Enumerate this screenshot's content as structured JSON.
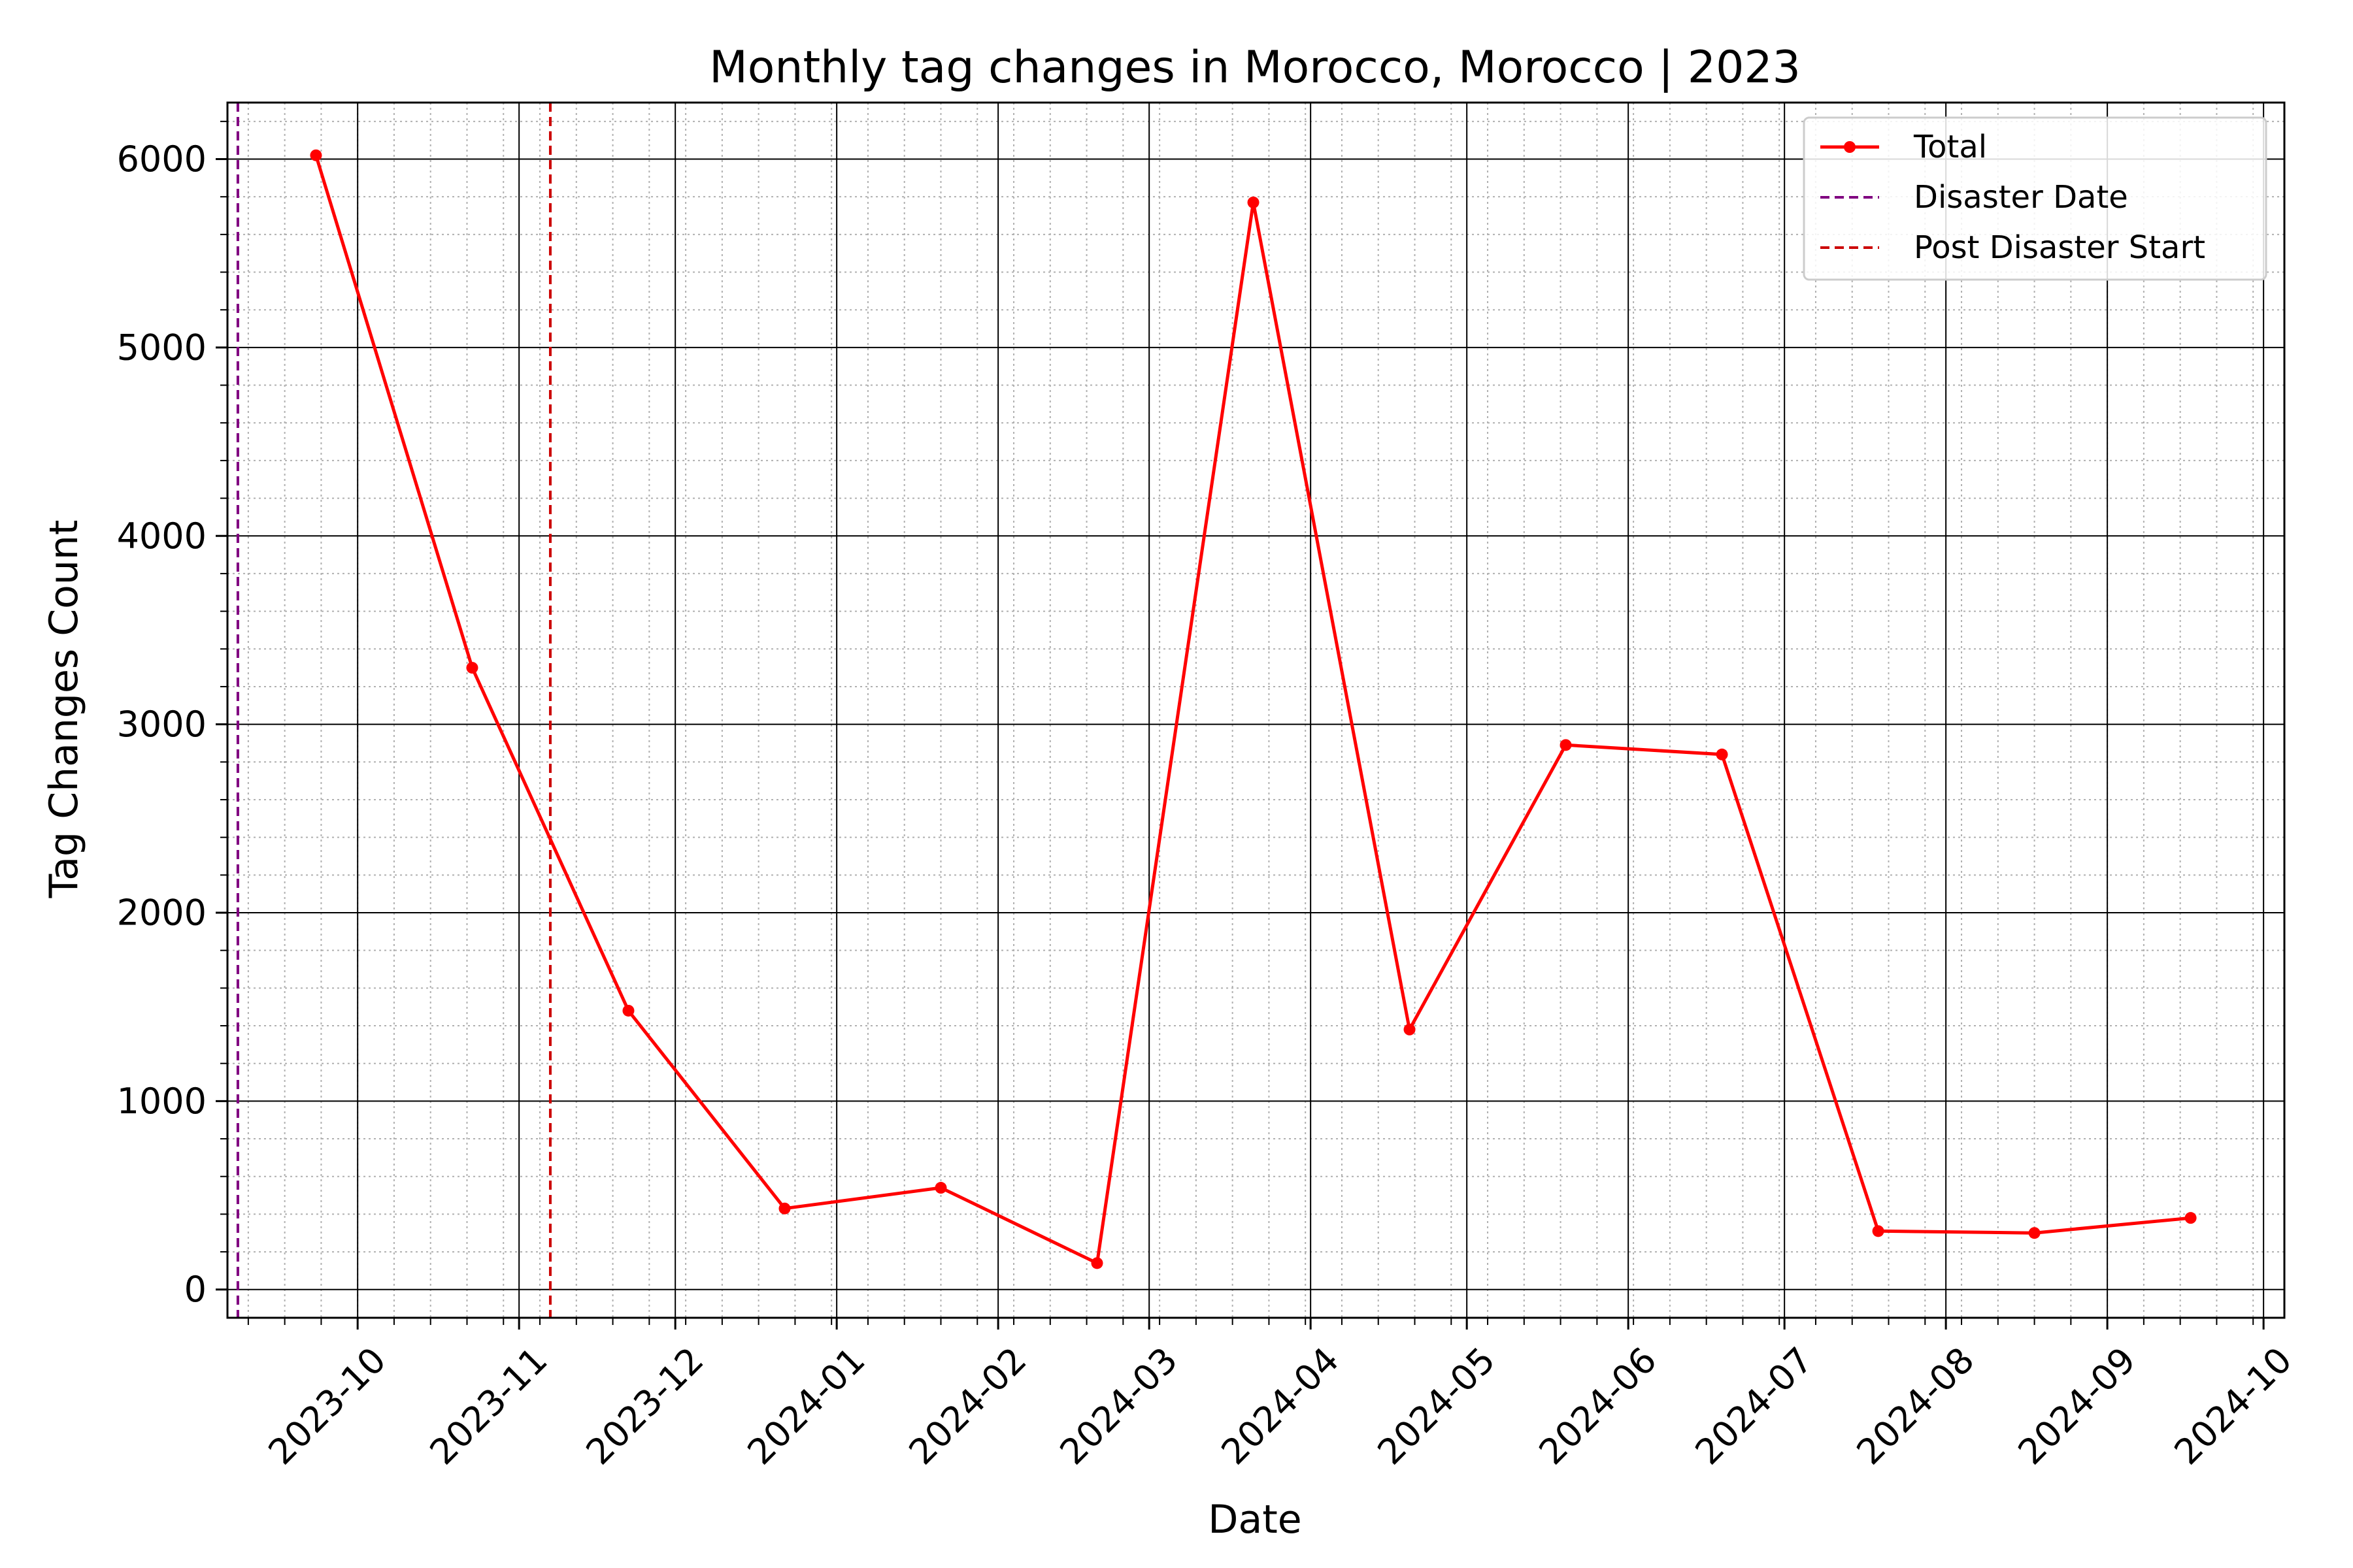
{
  "chart_data": {
    "type": "line",
    "title": "Monthly tag changes in Morocco, Morocco | 2023",
    "xlabel": "Date",
    "ylabel": "Tag Changes Count",
    "x_axis_type": "date",
    "xlim": [
      "2023-09-06",
      "2024-10-05"
    ],
    "ylim": [
      -150,
      6300
    ],
    "x_ticks": [
      "2023-10-01",
      "2023-11-01",
      "2023-12-01",
      "2024-01-01",
      "2024-02-01",
      "2024-03-01",
      "2024-04-01",
      "2024-05-01",
      "2024-06-01",
      "2024-07-01",
      "2024-08-01",
      "2024-09-01",
      "2024-10-01"
    ],
    "x_tick_labels": [
      "2023-10",
      "2023-11",
      "2023-12",
      "2024-01",
      "2024-02",
      "2024-03",
      "2024-04",
      "2024-05",
      "2024-06",
      "2024-07",
      "2024-08",
      "2024-09",
      "2024-10"
    ],
    "y_ticks": [
      0,
      1000,
      2000,
      3000,
      4000,
      5000,
      6000
    ],
    "y_tick_labels": [
      "0",
      "1000",
      "2000",
      "3000",
      "4000",
      "5000",
      "6000"
    ],
    "grid": {
      "major": true,
      "minor": true
    },
    "legend_position": "top-right",
    "series": [
      {
        "name": "Total",
        "color": "#ff0000",
        "marker": "circle",
        "x": [
          "2023-09-23",
          "2023-10-23",
          "2023-11-22",
          "2023-12-22",
          "2024-01-21",
          "2024-02-20",
          "2024-03-21",
          "2024-04-20",
          "2024-05-20",
          "2024-06-19",
          "2024-07-19",
          "2024-08-18",
          "2024-09-17"
        ],
        "values": [
          6020,
          3300,
          1480,
          430,
          540,
          140,
          5770,
          1380,
          2890,
          2840,
          310,
          300,
          380
        ]
      }
    ],
    "vertical_lines": [
      {
        "name": "Disaster Date",
        "x": "2023-09-08",
        "color": "#800080",
        "style": "dashed"
      },
      {
        "name": "Post Disaster Start",
        "x": "2023-11-07",
        "color": "#cc0000",
        "style": "dashed"
      }
    ]
  }
}
